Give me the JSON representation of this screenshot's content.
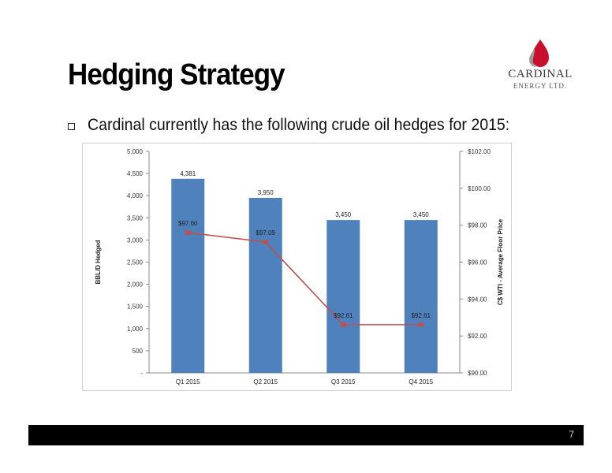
{
  "slide": {
    "title": "Hedging Strategy",
    "bullet": "Cardinal currently has the following crude oil hedges for 2015:",
    "page_number": "7"
  },
  "logo": {
    "name": "CARDINAL",
    "sub": "ENERGY LTD."
  },
  "colors": {
    "bar": "#4f81bd",
    "line": "#c0504d",
    "footer": "#000000",
    "logo_flame": "#c8102e"
  },
  "chart_data": {
    "type": "bar",
    "categories": [
      "Q1 2015",
      "Q2 2015",
      "Q3 2015",
      "Q4 2015"
    ],
    "series": [
      {
        "values": [
          4381,
          3950,
          3450,
          3450
        ],
        "labels": [
          "4,381",
          "3,950",
          "3,450",
          "3,450"
        ],
        "axis": "left",
        "type": "bar"
      },
      {
        "values": [
          97.6,
          97.09,
          92.61,
          92.61
        ],
        "labels": [
          "$97.60",
          "$97.09",
          "$92.61",
          "$92.61"
        ],
        "axis": "right",
        "type": "line"
      }
    ],
    "ylabel": "BBL/D Hedged",
    "y2label": "C$ WTI - Average Floor Price",
    "ylim": [
      0,
      5000
    ],
    "y2lim": [
      90,
      102
    ],
    "yticks": [
      "-",
      "500",
      "1,000",
      "1,500",
      "2,000",
      "2,500",
      "3,000",
      "3,500",
      "4,000",
      "4,500",
      "5,000"
    ],
    "y2ticks": [
      "$90.00",
      "$92.00",
      "$94.00",
      "$96.00",
      "$98.00",
      "$100.00",
      "$102.00"
    ],
    "legend": "none",
    "grid": false
  }
}
